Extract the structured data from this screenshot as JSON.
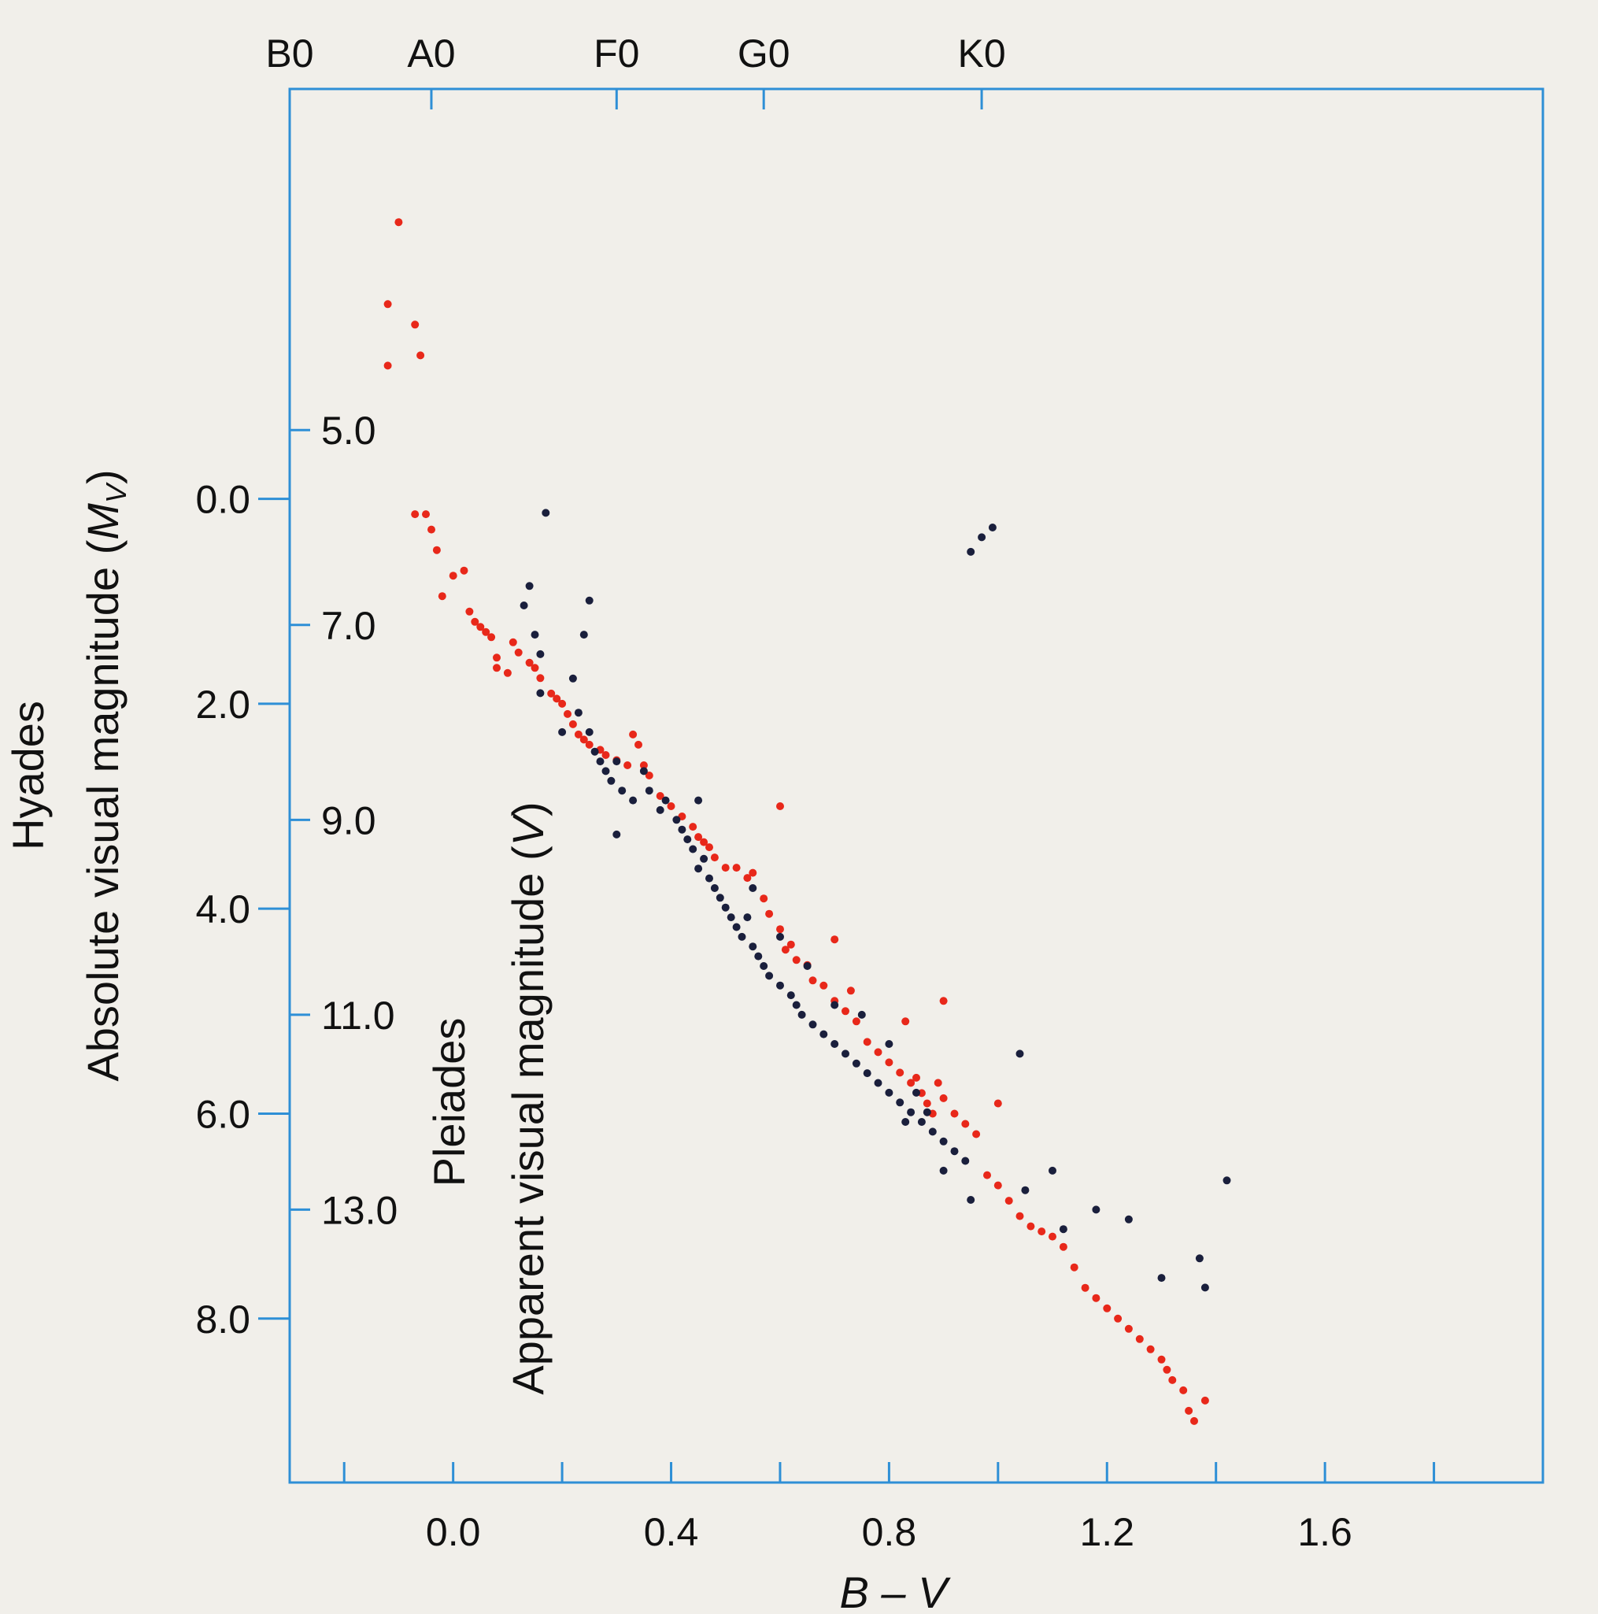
{
  "chart_data": {
    "type": "scatter",
    "title": "",
    "xlabel": "B – V",
    "xlim": [
      -0.3,
      2.0
    ],
    "x_ticks": [
      "0.0",
      "0.4",
      "0.8",
      "1.2",
      "1.6"
    ],
    "top_axis": {
      "labels": [
        "B0",
        "A0",
        "F0",
        "G0",
        "K0"
      ],
      "values": [
        -0.3,
        -0.04,
        0.3,
        0.57,
        0.97
      ]
    },
    "left_axis_absolute": {
      "label_name": "Hyades",
      "label": "Absolute visual magnitude (M_V)",
      "label_text": "Absolute visual magnitude (",
      "label_m": "M",
      "label_sub": "V",
      "label_close": ")",
      "ticks": [
        "0.0",
        "2.0",
        "4.0",
        "6.0",
        "8.0"
      ],
      "range": [
        -4.0,
        9.6
      ],
      "inverted": true
    },
    "left_axis_apparent": {
      "label_name": "Pleiades",
      "label": "Apparent visual magnitude (V)",
      "label_text": "Apparent visual magnitude (",
      "label_v": "V",
      "label_close": ")",
      "ticks": [
        "5.0",
        "7.0",
        "9.0",
        "11.0",
        "13.0"
      ],
      "range": [
        1.5,
        15.8
      ],
      "inverted": true
    },
    "grid": false,
    "legend": "none",
    "colors": {
      "frame": "#2e8fd6",
      "hyades": "#e8281a",
      "pleiades": "#1a1f3c"
    },
    "series": [
      {
        "key": "hyades",
        "axis": "absolute",
        "color": "#e8281a",
        "points": [
          [
            -0.1,
            -2.7
          ],
          [
            -0.12,
            -1.9
          ],
          [
            -0.07,
            -1.7
          ],
          [
            -0.06,
            -1.4
          ],
          [
            -0.12,
            -1.3
          ],
          [
            -0.07,
            0.15
          ],
          [
            -0.05,
            0.15
          ],
          [
            -0.04,
            0.3
          ],
          [
            -0.03,
            0.5
          ],
          [
            0.0,
            0.75
          ],
          [
            -0.02,
            0.95
          ],
          [
            0.02,
            0.7
          ],
          [
            0.03,
            1.1
          ],
          [
            0.04,
            1.2
          ],
          [
            0.05,
            1.25
          ],
          [
            0.06,
            1.3
          ],
          [
            0.07,
            1.35
          ],
          [
            0.08,
            1.55
          ],
          [
            0.08,
            1.65
          ],
          [
            0.1,
            1.7
          ],
          [
            0.11,
            1.4
          ],
          [
            0.12,
            1.5
          ],
          [
            0.14,
            1.6
          ],
          [
            0.15,
            1.65
          ],
          [
            0.16,
            1.75
          ],
          [
            0.18,
            1.9
          ],
          [
            0.19,
            1.95
          ],
          [
            0.2,
            2.0
          ],
          [
            0.21,
            2.1
          ],
          [
            0.22,
            2.2
          ],
          [
            0.23,
            2.3
          ],
          [
            0.24,
            2.35
          ],
          [
            0.25,
            2.4
          ],
          [
            0.27,
            2.45
          ],
          [
            0.28,
            2.5
          ],
          [
            0.3,
            2.55
          ],
          [
            0.32,
            2.6
          ],
          [
            0.33,
            2.3
          ],
          [
            0.34,
            2.4
          ],
          [
            0.35,
            2.6
          ],
          [
            0.36,
            2.7
          ],
          [
            0.38,
            2.9
          ],
          [
            0.4,
            3.0
          ],
          [
            0.42,
            3.1
          ],
          [
            0.44,
            3.2
          ],
          [
            0.45,
            3.3
          ],
          [
            0.46,
            3.35
          ],
          [
            0.47,
            3.4
          ],
          [
            0.48,
            3.5
          ],
          [
            0.5,
            3.6
          ],
          [
            0.52,
            3.6
          ],
          [
            0.54,
            3.7
          ],
          [
            0.55,
            3.65
          ],
          [
            0.57,
            3.9
          ],
          [
            0.58,
            4.05
          ],
          [
            0.6,
            4.2
          ],
          [
            0.61,
            4.4
          ],
          [
            0.62,
            4.35
          ],
          [
            0.63,
            4.5
          ],
          [
            0.65,
            4.55
          ],
          [
            0.66,
            4.7
          ],
          [
            0.68,
            4.75
          ],
          [
            0.7,
            4.9
          ],
          [
            0.72,
            5.0
          ],
          [
            0.73,
            4.8
          ],
          [
            0.74,
            5.1
          ],
          [
            0.76,
            5.3
          ],
          [
            0.78,
            5.4
          ],
          [
            0.8,
            5.5
          ],
          [
            0.82,
            5.6
          ],
          [
            0.84,
            5.7
          ],
          [
            0.85,
            5.65
          ],
          [
            0.86,
            5.8
          ],
          [
            0.87,
            5.9
          ],
          [
            0.88,
            6.0
          ],
          [
            0.89,
            5.7
          ],
          [
            0.9,
            5.85
          ],
          [
            0.92,
            6.0
          ],
          [
            0.94,
            6.1
          ],
          [
            0.96,
            6.2
          ],
          [
            0.98,
            6.6
          ],
          [
            1.0,
            6.7
          ],
          [
            1.02,
            6.85
          ],
          [
            1.04,
            7.0
          ],
          [
            1.06,
            7.1
          ],
          [
            1.08,
            7.15
          ],
          [
            1.1,
            7.2
          ],
          [
            1.12,
            7.3
          ],
          [
            1.14,
            7.5
          ],
          [
            1.16,
            7.7
          ],
          [
            1.18,
            7.8
          ],
          [
            1.2,
            7.9
          ],
          [
            1.22,
            8.0
          ],
          [
            1.24,
            8.1
          ],
          [
            1.26,
            8.2
          ],
          [
            1.28,
            8.3
          ],
          [
            1.3,
            8.4
          ],
          [
            1.31,
            8.5
          ],
          [
            1.32,
            8.6
          ],
          [
            1.34,
            8.7
          ],
          [
            1.35,
            8.9
          ],
          [
            1.36,
            9.0
          ],
          [
            1.38,
            8.8
          ],
          [
            0.6,
            3.0
          ],
          [
            0.7,
            4.3
          ],
          [
            0.83,
            5.1
          ],
          [
            0.9,
            4.9
          ],
          [
            1.0,
            5.9
          ]
        ]
      },
      {
        "key": "pleiades",
        "axis": "apparent",
        "color": "#1a1f3c",
        "points": [
          [
            0.17,
            5.85
          ],
          [
            0.95,
            6.25
          ],
          [
            0.97,
            6.1
          ],
          [
            0.99,
            6.0
          ],
          [
            0.14,
            6.6
          ],
          [
            0.13,
            6.8
          ],
          [
            0.15,
            7.1
          ],
          [
            0.16,
            7.3
          ],
          [
            0.25,
            6.75
          ],
          [
            0.24,
            7.1
          ],
          [
            0.22,
            7.55
          ],
          [
            0.23,
            7.9
          ],
          [
            0.25,
            8.1
          ],
          [
            0.26,
            8.3
          ],
          [
            0.27,
            8.4
          ],
          [
            0.28,
            8.5
          ],
          [
            0.29,
            8.6
          ],
          [
            0.3,
            8.4
          ],
          [
            0.31,
            8.7
          ],
          [
            0.33,
            8.8
          ],
          [
            0.35,
            8.5
          ],
          [
            0.36,
            8.7
          ],
          [
            0.38,
            8.9
          ],
          [
            0.39,
            8.8
          ],
          [
            0.41,
            9.0
          ],
          [
            0.42,
            9.1
          ],
          [
            0.43,
            9.2
          ],
          [
            0.44,
            9.3
          ],
          [
            0.45,
            9.5
          ],
          [
            0.46,
            9.4
          ],
          [
            0.47,
            9.6
          ],
          [
            0.48,
            9.7
          ],
          [
            0.49,
            9.8
          ],
          [
            0.5,
            9.9
          ],
          [
            0.51,
            10.0
          ],
          [
            0.52,
            10.1
          ],
          [
            0.53,
            10.2
          ],
          [
            0.54,
            10.0
          ],
          [
            0.55,
            10.3
          ],
          [
            0.56,
            10.4
          ],
          [
            0.57,
            10.5
          ],
          [
            0.58,
            10.6
          ],
          [
            0.6,
            10.7
          ],
          [
            0.62,
            10.8
          ],
          [
            0.63,
            10.9
          ],
          [
            0.64,
            11.0
          ],
          [
            0.66,
            11.1
          ],
          [
            0.68,
            11.2
          ],
          [
            0.7,
            11.3
          ],
          [
            0.72,
            11.4
          ],
          [
            0.74,
            11.5
          ],
          [
            0.76,
            11.6
          ],
          [
            0.78,
            11.7
          ],
          [
            0.8,
            11.8
          ],
          [
            0.82,
            11.9
          ],
          [
            0.84,
            12.0
          ],
          [
            0.85,
            11.8
          ],
          [
            0.86,
            12.1
          ],
          [
            0.88,
            12.2
          ],
          [
            0.9,
            12.3
          ],
          [
            0.92,
            12.4
          ],
          [
            0.94,
            12.5
          ],
          [
            0.3,
            9.15
          ],
          [
            0.45,
            8.8
          ],
          [
            0.55,
            9.7
          ],
          [
            0.6,
            10.2
          ],
          [
            0.65,
            10.5
          ],
          [
            0.7,
            10.9
          ],
          [
            0.75,
            11.0
          ],
          [
            0.8,
            11.3
          ],
          [
            0.83,
            12.1
          ],
          [
            0.87,
            12.0
          ],
          [
            1.04,
            11.4
          ],
          [
            1.1,
            12.6
          ],
          [
            1.12,
            13.2
          ],
          [
            1.18,
            13.0
          ],
          [
            1.24,
            13.1
          ],
          [
            1.3,
            13.7
          ],
          [
            1.37,
            13.5
          ],
          [
            1.38,
            13.8
          ],
          [
            1.42,
            12.7
          ],
          [
            0.9,
            12.6
          ],
          [
            0.95,
            12.9
          ],
          [
            1.05,
            12.8
          ],
          [
            0.2,
            8.1
          ],
          [
            0.16,
            7.7
          ]
        ]
      }
    ]
  }
}
